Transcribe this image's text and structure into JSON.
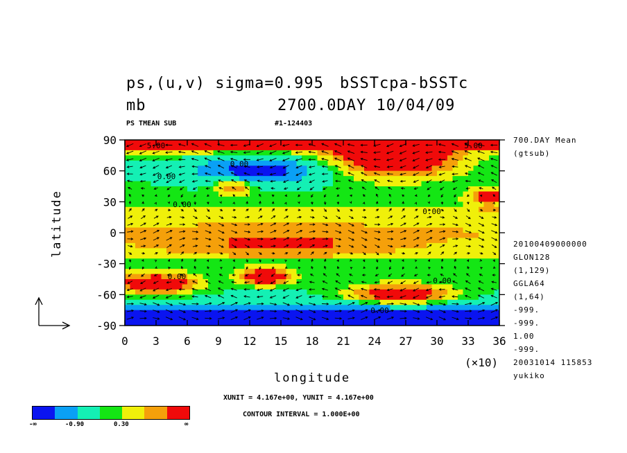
{
  "header": {
    "title_left_1": "ps,(u,v) sigma=0.995",
    "title_right_1": "bSSTcpa-bSSTc",
    "title_left_2": "mb",
    "title_right_2": "2700.0DAY 10/04/09",
    "sub_left": "PS TMEAN SUB",
    "sub_right": "#1-124403"
  },
  "side_info": {
    "line1": "700.DAY Mean",
    "line2": "(gtsub)",
    "lines": [
      "20100409000000",
      "GLON128",
      "(1,129)",
      "GGLA64",
      "(1,64)",
      "-999.",
      "-999.",
      "1.00",
      "-999.",
      "20031014 115853",
      "yukiko"
    ]
  },
  "footer": {
    "units": "XUNIT = 4.167e+00, YUNIT = 4.167e+00",
    "contour": "CONTOUR INTERVAL = 1.000E+00"
  },
  "legend": {
    "colors": [
      "#0a14f0",
      "#0aa0f5",
      "#14f0b4",
      "#14e614",
      "#f0f00a",
      "#f5a00a",
      "#f00a0a"
    ],
    "labels": [
      "-∞",
      "-0.90",
      "0.30",
      "∞"
    ]
  },
  "chart_data": {
    "type": "heatmap",
    "title": "ps,(u,v) sigma=0.995 bSSTcpa-bSSTc",
    "xlabel": "longitude",
    "ylabel": "latitude",
    "x_multiplier": "(×10)",
    "xlim": [
      0,
      36
    ],
    "ylim": [
      -90,
      90
    ],
    "xticks": [
      0,
      3,
      6,
      9,
      12,
      15,
      18,
      21,
      24,
      27,
      30,
      33,
      36
    ],
    "yticks": [
      90,
      60,
      30,
      0,
      -30,
      -60,
      -90
    ],
    "contour_labels": [
      {
        "text": "5.00",
        "x": 3,
        "y": 82
      },
      {
        "text": "5.00",
        "x": 33.5,
        "y": 82
      },
      {
        "text": "0.00",
        "x": 11,
        "y": 64
      },
      {
        "text": "0.00",
        "x": 4,
        "y": 52
      },
      {
        "text": "0.00",
        "x": 5.5,
        "y": 25
      },
      {
        "text": "0.00",
        "x": 29.5,
        "y": 18
      },
      {
        "text": "0.00",
        "x": 5,
        "y": -45
      },
      {
        "text": "0.00",
        "x": 30.5,
        "y": -49
      },
      {
        "text": "0.00",
        "x": 24.5,
        "y": -78
      }
    ],
    "regions_description_values": [
      {
        "lon": 0,
        "lat": 90,
        "value": 1.5
      },
      {
        "lon": 13,
        "lat": 60,
        "value": -1.5
      },
      {
        "lon": 26,
        "lat": 70,
        "value": 1.5
      },
      {
        "lon": 10.5,
        "lat": 45,
        "value": 1.2
      },
      {
        "lon": 35,
        "lat": 35,
        "value": 1.0
      },
      {
        "lon": 15,
        "lat": -10,
        "value": 0.5
      },
      {
        "lon": 3,
        "lat": -50,
        "value": 1.5
      },
      {
        "lon": 13.5,
        "lat": -43,
        "value": 1.5
      },
      {
        "lon": 26.5,
        "lat": -60,
        "value": 1.5
      },
      {
        "lon": 12,
        "lat": -80,
        "value": -1.5
      }
    ]
  }
}
